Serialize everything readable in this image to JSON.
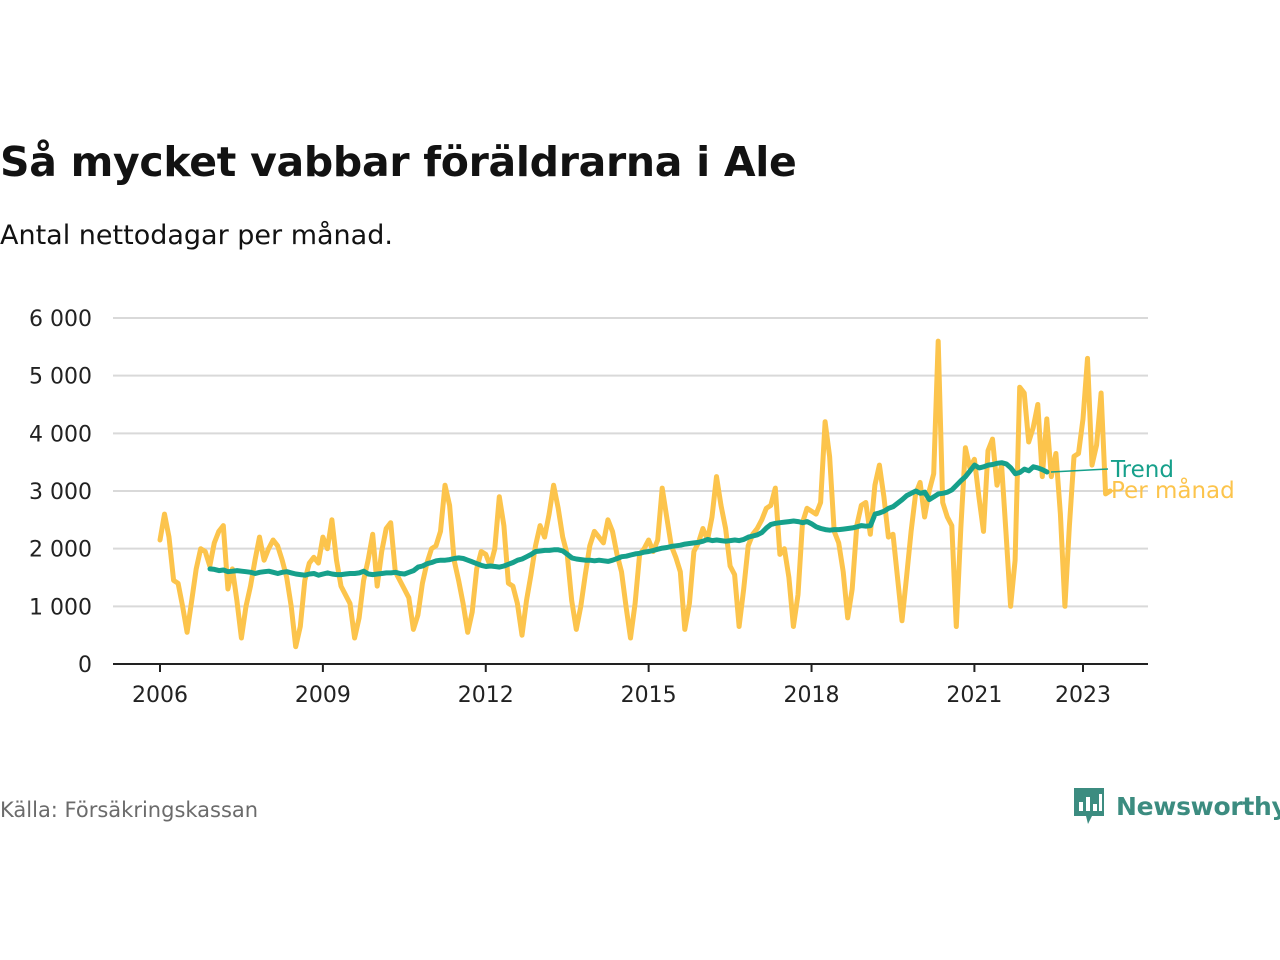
{
  "title": "Så mycket vabbar föräldrarna i Ale",
  "subtitle": "Antal nettodagar per månad.",
  "source": "Källa: Försäkringskassan",
  "brand": "Newsworthy",
  "chart_data": {
    "type": "line",
    "title": "Så mycket vabbar föräldrarna i Ale",
    "subtitle": "Antal nettodagar per månad.",
    "xlim": [
      2006,
      2023.67
    ],
    "ylim": [
      0,
      6000
    ],
    "x_ticks": [
      2006,
      2009,
      2012,
      2015,
      2018,
      2021,
      2023
    ],
    "x_tick_labels": [
      "2006",
      "2009",
      "2012",
      "2015",
      "2018",
      "2021",
      "2023"
    ],
    "y_ticks": [
      0,
      1000,
      2000,
      3000,
      4000,
      5000,
      6000
    ],
    "y_tick_labels": [
      "0",
      "1 000",
      "2 000",
      "3 000",
      "4 000",
      "5 000",
      "6 000"
    ],
    "grid": true,
    "legend": "inline labels at right end of lines",
    "series": [
      {
        "name": "Per månad",
        "color": "#fcc44c",
        "start": 2006.0,
        "step": 0.0833333,
        "values": [
          2150,
          2600,
          2200,
          1450,
          1400,
          1000,
          550,
          1100,
          1650,
          2000,
          1950,
          1700,
          2100,
          2300,
          2400,
          1300,
          1650,
          1100,
          450,
          1000,
          1350,
          1800,
          2200,
          1800,
          2000,
          2150,
          2050,
          1800,
          1500,
          1000,
          300,
          650,
          1450,
          1750,
          1850,
          1750,
          2200,
          2000,
          2500,
          1800,
          1350,
          1200,
          1050,
          450,
          800,
          1450,
          1800,
          2250,
          1350,
          1950,
          2350,
          2450,
          1600,
          1450,
          1300,
          1150,
          600,
          850,
          1400,
          1750,
          2000,
          2050,
          2300,
          3100,
          2750,
          1800,
          1450,
          1050,
          550,
          900,
          1650,
          1950,
          1900,
          1700,
          2000,
          2900,
          2400,
          1400,
          1350,
          1050,
          500,
          1100,
          1550,
          2050,
          2400,
          2200,
          2600,
          3100,
          2700,
          2200,
          1900,
          1100,
          600,
          1000,
          1550,
          2050,
          2300,
          2200,
          2100,
          2500,
          2300,
          1900,
          1600,
          1000,
          450,
          1050,
          1900,
          2000,
          2150,
          1950,
          2150,
          3050,
          2550,
          2050,
          1850,
          1600,
          600,
          1050,
          1950,
          2100,
          2350,
          2150,
          2550,
          3250,
          2750,
          2350,
          1700,
          1550,
          650,
          1300,
          2050,
          2250,
          2350,
          2500,
          2700,
          2750,
          3050,
          1900,
          2000,
          1500,
          650,
          1200,
          2450,
          2700,
          2650,
          2600,
          2800,
          4200,
          3600,
          2300,
          2100,
          1600,
          800,
          1300,
          2400,
          2750,
          2800,
          2250,
          3100,
          3450,
          2900,
          2200,
          2250,
          1500,
          750,
          1500,
          2300,
          2950,
          3150,
          2550,
          3000,
          3300,
          5600,
          2800,
          2550,
          2400,
          650,
          2350,
          3750,
          3400,
          3550,
          2900,
          2300,
          3700,
          3900,
          3100,
          3450,
          2250,
          1000,
          1800,
          4800,
          4700,
          3850,
          4100,
          4500,
          3250,
          4250,
          3250,
          3650,
          2600,
          1000,
          2400,
          3600,
          3650,
          4250,
          5300,
          3450,
          3800,
          4700,
          2950,
          3000
        ]
      },
      {
        "name": "Trend",
        "color": "#16a08b",
        "start": 2006.92,
        "step": 0.0833333,
        "values": [
          1650,
          1640,
          1620,
          1630,
          1600,
          1610,
          1620,
          1610,
          1600,
          1590,
          1570,
          1590,
          1600,
          1610,
          1590,
          1570,
          1590,
          1600,
          1580,
          1560,
          1550,
          1540,
          1560,
          1570,
          1540,
          1560,
          1580,
          1560,
          1550,
          1550,
          1560,
          1570,
          1570,
          1580,
          1610,
          1560,
          1550,
          1560,
          1570,
          1580,
          1580,
          1590,
          1570,
          1560,
          1590,
          1620,
          1680,
          1700,
          1740,
          1760,
          1790,
          1800,
          1800,
          1810,
          1830,
          1840,
          1830,
          1800,
          1770,
          1740,
          1710,
          1690,
          1700,
          1690,
          1680,
          1700,
          1730,
          1760,
          1800,
          1820,
          1860,
          1900,
          1950,
          1960,
          1970,
          1970,
          1980,
          1980,
          1960,
          1900,
          1840,
          1820,
          1810,
          1800,
          1800,
          1790,
          1800,
          1790,
          1780,
          1800,
          1830,
          1860,
          1870,
          1890,
          1910,
          1920,
          1940,
          1950,
          1970,
          1990,
          2010,
          2020,
          2040,
          2050,
          2060,
          2080,
          2090,
          2100,
          2110,
          2130,
          2160,
          2140,
          2150,
          2140,
          2130,
          2140,
          2150,
          2140,
          2160,
          2200,
          2220,
          2240,
          2280,
          2360,
          2420,
          2440,
          2450,
          2460,
          2470,
          2480,
          2470,
          2450,
          2470,
          2430,
          2380,
          2350,
          2330,
          2320,
          2330,
          2330,
          2340,
          2350,
          2360,
          2380,
          2400,
          2390,
          2400,
          2600,
          2620,
          2650,
          2700,
          2730,
          2790,
          2850,
          2920,
          2960,
          3000,
          2960,
          2980,
          2850,
          2900,
          2950,
          2960,
          2980,
          3020,
          3100,
          3180,
          3250,
          3350,
          3450,
          3400,
          3420,
          3450,
          3460,
          3480,
          3490,
          3470,
          3400,
          3300,
          3320,
          3380,
          3350,
          3420,
          3400,
          3370,
          3330
        ]
      }
    ]
  }
}
